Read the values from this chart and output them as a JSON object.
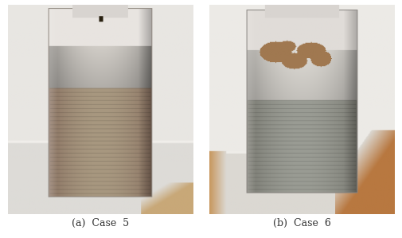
{
  "caption_left": "(a)  Case  5",
  "caption_right": "(b)  Case  6",
  "caption_fontsize": 9,
  "caption_color": "#333333",
  "background_color": "#ffffff",
  "figsize": [
    5.06,
    2.99
  ],
  "dpi": 100
}
